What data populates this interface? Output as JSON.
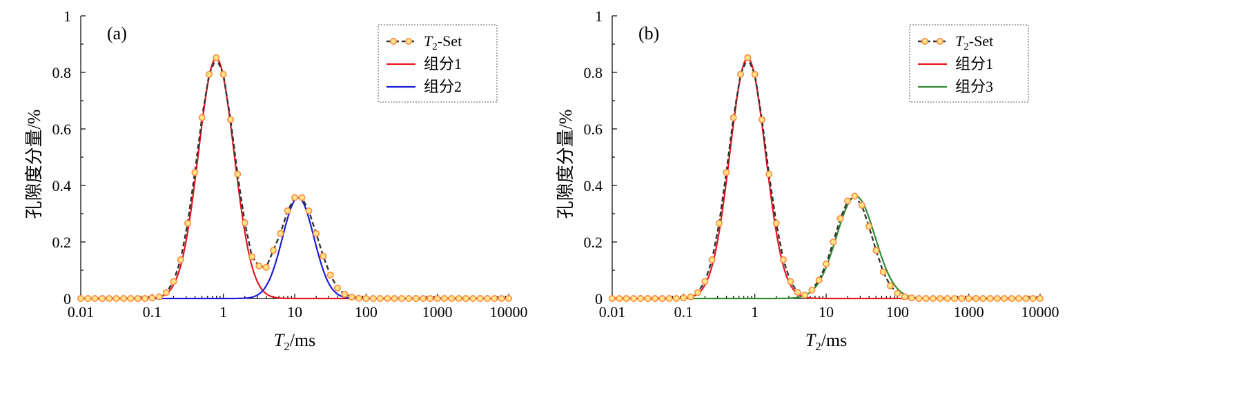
{
  "chart_data": [
    {
      "type": "line",
      "panel_label": "(a)",
      "xlabel": "T2/ms",
      "xlabel_main": "T",
      "xlabel_sub": "2",
      "xlabel_rest": "/ms",
      "ylabel": "孔隙度分量/%",
      "x_scale": "log",
      "xlim": [
        0.01,
        10000
      ],
      "ylim": [
        0,
        1
      ],
      "x_ticks": [
        "0.01",
        "0.1",
        "1",
        "10",
        "100",
        "1000",
        "10000"
      ],
      "y_ticks": [
        "0",
        "0.2",
        "0.4",
        "0.6",
        "0.8",
        "1"
      ],
      "legend_position": "top-right",
      "series": [
        {
          "name": "T2-Set",
          "name_main": "T",
          "name_sub": "2",
          "name_rest": "-Set",
          "style": "dashed-circles",
          "color": "#333333",
          "marker_fill": "#ffe48a",
          "marker_edge": "#ff8a3d",
          "x": [
            0.01,
            0.0126,
            0.0158,
            0.02,
            0.0251,
            0.0316,
            0.0398,
            0.0501,
            0.0631,
            0.0794,
            0.1,
            0.126,
            0.158,
            0.2,
            0.251,
            0.316,
            0.398,
            0.501,
            0.631,
            0.794,
            1.0,
            1.26,
            1.58,
            2.0,
            2.51,
            3.16,
            3.98,
            5.01,
            6.31,
            7.94,
            10.0,
            12.6,
            15.8,
            20.0,
            25.1,
            31.6,
            39.8,
            50.1,
            63.1,
            79.4,
            100,
            126,
            158,
            200,
            251,
            316,
            398,
            501,
            631,
            794,
            1000,
            1260,
            1580,
            2000,
            2510,
            3160,
            3980,
            5010,
            6310,
            7940,
            10000
          ],
          "y": [
            0,
            0,
            0,
            0,
            0,
            0,
            0,
            0,
            0,
            0,
            0.002,
            0.006,
            0.021,
            0.06,
            0.137,
            0.266,
            0.446,
            0.64,
            0.793,
            0.852,
            0.793,
            0.633,
            0.44,
            0.268,
            0.148,
            0.115,
            0.11,
            0.17,
            0.23,
            0.31,
            0.357,
            0.357,
            0.31,
            0.23,
            0.15,
            0.083,
            0.037,
            0.015,
            0.005,
            0.001,
            0,
            0,
            0,
            0,
            0,
            0,
            0,
            0,
            0,
            0,
            0,
            0,
            0,
            0,
            0,
            0,
            0,
            0,
            0,
            0,
            0
          ]
        },
        {
          "name": "组分1",
          "color": "#e8141c",
          "peak": 0.85,
          "center": 0.794,
          "sigma_log10": 0.25
        },
        {
          "name": "组分2",
          "color": "#1a1ad6",
          "peak": 0.357,
          "center": 11.2,
          "sigma_log10": 0.22
        }
      ]
    },
    {
      "type": "line",
      "panel_label": "(b)",
      "xlabel": "T2/ms",
      "xlabel_main": "T",
      "xlabel_sub": "2",
      "xlabel_rest": "/ms",
      "ylabel": "孔隙度分量/%",
      "x_scale": "log",
      "xlim": [
        0.01,
        10000
      ],
      "ylim": [
        0,
        1
      ],
      "x_ticks": [
        "0.01",
        "0.1",
        "1",
        "10",
        "100",
        "1000",
        "10000"
      ],
      "y_ticks": [
        "0",
        "0.2",
        "0.4",
        "0.6",
        "0.8",
        "1"
      ],
      "legend_position": "top-right",
      "series": [
        {
          "name": "T2-Set",
          "name_main": "T",
          "name_sub": "2",
          "name_rest": "-Set",
          "style": "dashed-circles",
          "color": "#333333",
          "marker_fill": "#ffe48a",
          "marker_edge": "#ff8a3d",
          "x": [
            0.01,
            0.0126,
            0.0158,
            0.02,
            0.0251,
            0.0316,
            0.0398,
            0.0501,
            0.0631,
            0.0794,
            0.1,
            0.126,
            0.158,
            0.2,
            0.251,
            0.316,
            0.398,
            0.501,
            0.631,
            0.794,
            1.0,
            1.26,
            1.58,
            2.0,
            2.51,
            3.16,
            3.98,
            5.01,
            6.31,
            7.94,
            10.0,
            12.6,
            15.8,
            20.0,
            25.1,
            31.6,
            39.8,
            50.1,
            63.1,
            79.4,
            100,
            126,
            158,
            200,
            251,
            316,
            398,
            501,
            631,
            794,
            1000,
            1260,
            1580,
            2000,
            2510,
            3160,
            3980,
            5010,
            6310,
            7940,
            10000
          ],
          "y": [
            0,
            0,
            0,
            0,
            0,
            0,
            0,
            0,
            0,
            0,
            0.002,
            0.006,
            0.021,
            0.06,
            0.137,
            0.266,
            0.446,
            0.64,
            0.793,
            0.852,
            0.793,
            0.633,
            0.44,
            0.266,
            0.137,
            0.06,
            0.022,
            0.012,
            0.03,
            0.065,
            0.122,
            0.2,
            0.283,
            0.345,
            0.362,
            0.33,
            0.255,
            0.17,
            0.094,
            0.045,
            0.018,
            0.006,
            0.002,
            0,
            0,
            0,
            0,
            0,
            0,
            0,
            0,
            0,
            0,
            0,
            0,
            0,
            0,
            0,
            0,
            0,
            0
          ]
        },
        {
          "name": "组分1",
          "color": "#e8141c",
          "peak": 0.85,
          "center": 0.794,
          "sigma_log10": 0.25
        },
        {
          "name": "组分3",
          "color": "#2e8a2e",
          "peak": 0.362,
          "center": 26.0,
          "sigma_log10": 0.27
        }
      ]
    }
  ]
}
